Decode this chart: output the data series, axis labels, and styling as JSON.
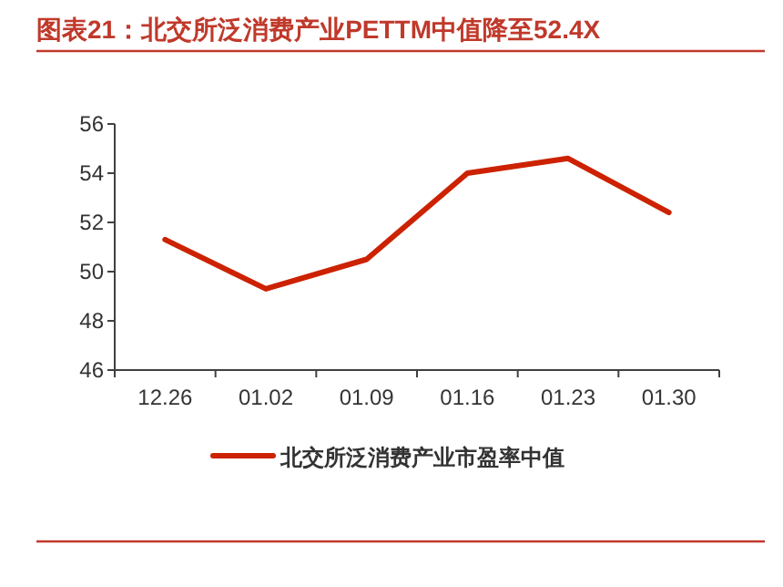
{
  "chart_data": {
    "type": "line",
    "title": "图表21：北交所泛消费产业PETTM中值降至52.4X",
    "categories": [
      "12.26",
      "01.02",
      "01.09",
      "01.16",
      "01.23",
      "01.30"
    ],
    "series": [
      {
        "name": "北交所泛消费产业市盈率中值",
        "color": "#cc2200",
        "values": [
          51.3,
          49.3,
          50.5,
          54.0,
          54.6,
          52.4
        ]
      }
    ],
    "ylim": [
      46,
      56
    ],
    "yticks": [
      46,
      48,
      50,
      52,
      54,
      56
    ],
    "grid": false,
    "legend": "bottom",
    "marker": "none",
    "line_style": "solid"
  }
}
